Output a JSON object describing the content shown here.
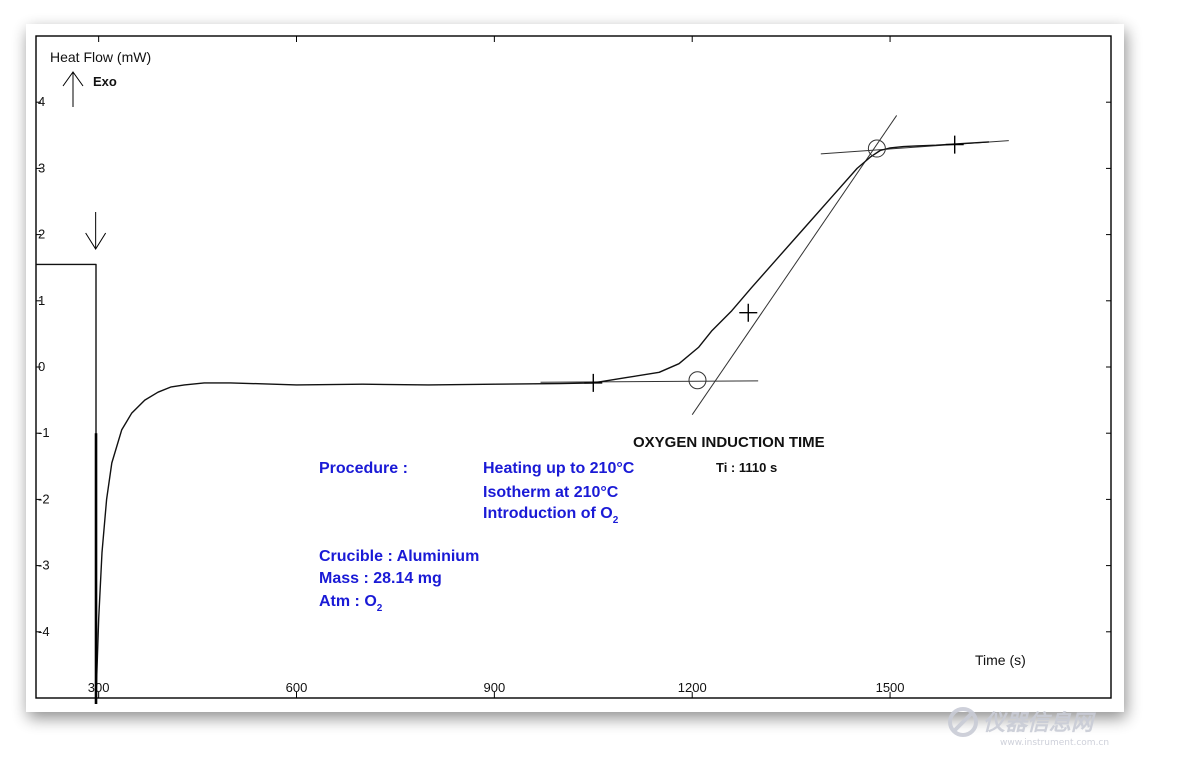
{
  "chart_data": {
    "type": "line",
    "title": "OXYGEN INDUCTION TIME",
    "ylabel": "Heat Flow (mW)",
    "y_direction_label": "Exo",
    "xlabel": "Time (s)",
    "x_ticks": [
      "300",
      "600",
      "900",
      "1200",
      "1500"
    ],
    "y_ticks": [
      "4",
      "3",
      "2",
      "1",
      "0",
      "-1",
      "-2",
      "-3",
      "-4"
    ],
    "xlim": [
      205,
      1835
    ],
    "ylim": [
      -5,
      5
    ],
    "grid": false,
    "series": [
      {
        "x": [
          205,
          296,
          296,
          300,
          305,
          312,
          320,
          335,
          350,
          370,
          390,
          410,
          430,
          460,
          500,
          600,
          700,
          800,
          900,
          1000,
          1050,
          1100,
          1150,
          1180,
          1210,
          1230,
          1260,
          1290,
          1330,
          1370,
          1410,
          1450,
          1470,
          1485,
          1500,
          1520,
          1540,
          1570,
          1600,
          1650
        ],
        "y": [
          1.55,
          1.55,
          -5,
          -3.8,
          -2.8,
          -2.0,
          -1.45,
          -0.95,
          -0.7,
          -0.5,
          -0.38,
          -0.3,
          -0.27,
          -0.24,
          -0.24,
          -0.27,
          -0.26,
          -0.27,
          -0.26,
          -0.25,
          -0.24,
          -0.16,
          -0.08,
          0.05,
          0.3,
          0.55,
          0.85,
          1.2,
          1.65,
          2.1,
          2.55,
          3.0,
          3.17,
          3.27,
          3.31,
          3.33,
          3.34,
          3.35,
          3.37,
          3.4
        ]
      }
    ],
    "construction_lines": [
      {
        "x": [
          970,
          1300
        ],
        "y": [
          -0.23,
          -0.21
        ]
      },
      {
        "x": [
          1200,
          1510
        ],
        "y": [
          -0.72,
          3.8
        ]
      },
      {
        "x": [
          1395,
          1680
        ],
        "y": [
          3.22,
          3.42
        ]
      }
    ],
    "markers": [
      {
        "x": 1050,
        "y": -0.24,
        "shape": "cross"
      },
      {
        "x": 1285,
        "y": 0.82,
        "shape": "cross"
      },
      {
        "x": 1598,
        "y": 3.36,
        "shape": "cross"
      },
      {
        "x": 1208,
        "y": -0.2,
        "shape": "circle"
      },
      {
        "x": 1480,
        "y": 3.3,
        "shape": "circle"
      }
    ],
    "event_arrow_x": 300,
    "result_label": "Ti : 1110 s",
    "procedure_label": "Procedure :",
    "procedure_steps": [
      "Heating up to 210°C",
      "Isotherm at 210°C",
      "Introduction of O"
    ],
    "procedure_step_subscript": "2",
    "crucible": "Crucible : Aluminium",
    "mass": "Mass : 28.14 mg",
    "atm": "Atm : O",
    "atm_subscript": "2"
  },
  "watermark": {
    "name": "仪器信息网",
    "url": "www.instrument.com.cn"
  }
}
